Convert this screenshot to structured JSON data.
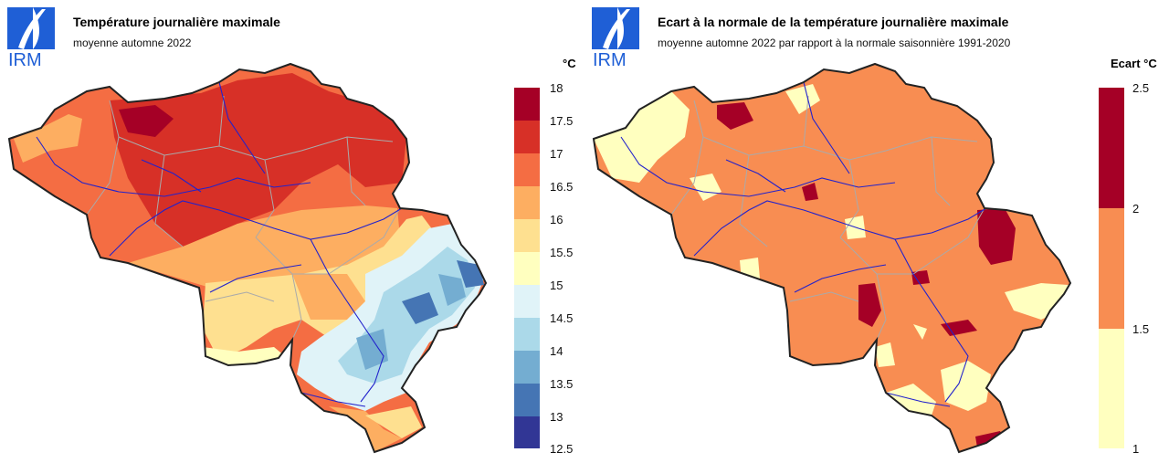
{
  "left": {
    "logo_text": "IRM",
    "title": "Température journalière maximale",
    "subtitle": "moyenne automne 2022",
    "unit": "°C",
    "legend": {
      "ticks": [
        "18",
        "17.5",
        "17",
        "16.5",
        "16",
        "15.5",
        "15",
        "14.5",
        "14",
        "13.5",
        "13",
        "12.5"
      ],
      "colors": [
        "#a50026",
        "#d73027",
        "#f46d43",
        "#fdae61",
        "#fee090",
        "#ffffbf",
        "#e0f3f8",
        "#abd9e9",
        "#74add1",
        "#4575b4",
        "#313695"
      ]
    }
  },
  "right": {
    "logo_text": "IRM",
    "title": "Ecart à la normale de la température journalière maximale",
    "subtitle": "moyenne automne 2022 par rapport à la normale saisonnière 1991-2020",
    "unit": "Ecart °C",
    "legend": {
      "ticks": [
        "2.5",
        "2",
        "1.5",
        "1"
      ],
      "colors": [
        "#a50026",
        "#f88d52",
        "#ffffbf"
      ]
    }
  },
  "colors": {
    "logo_blue": "#1f5fd6",
    "border": "#222222",
    "rivers": "#2222cc",
    "provinces": "#aaaaaa"
  }
}
